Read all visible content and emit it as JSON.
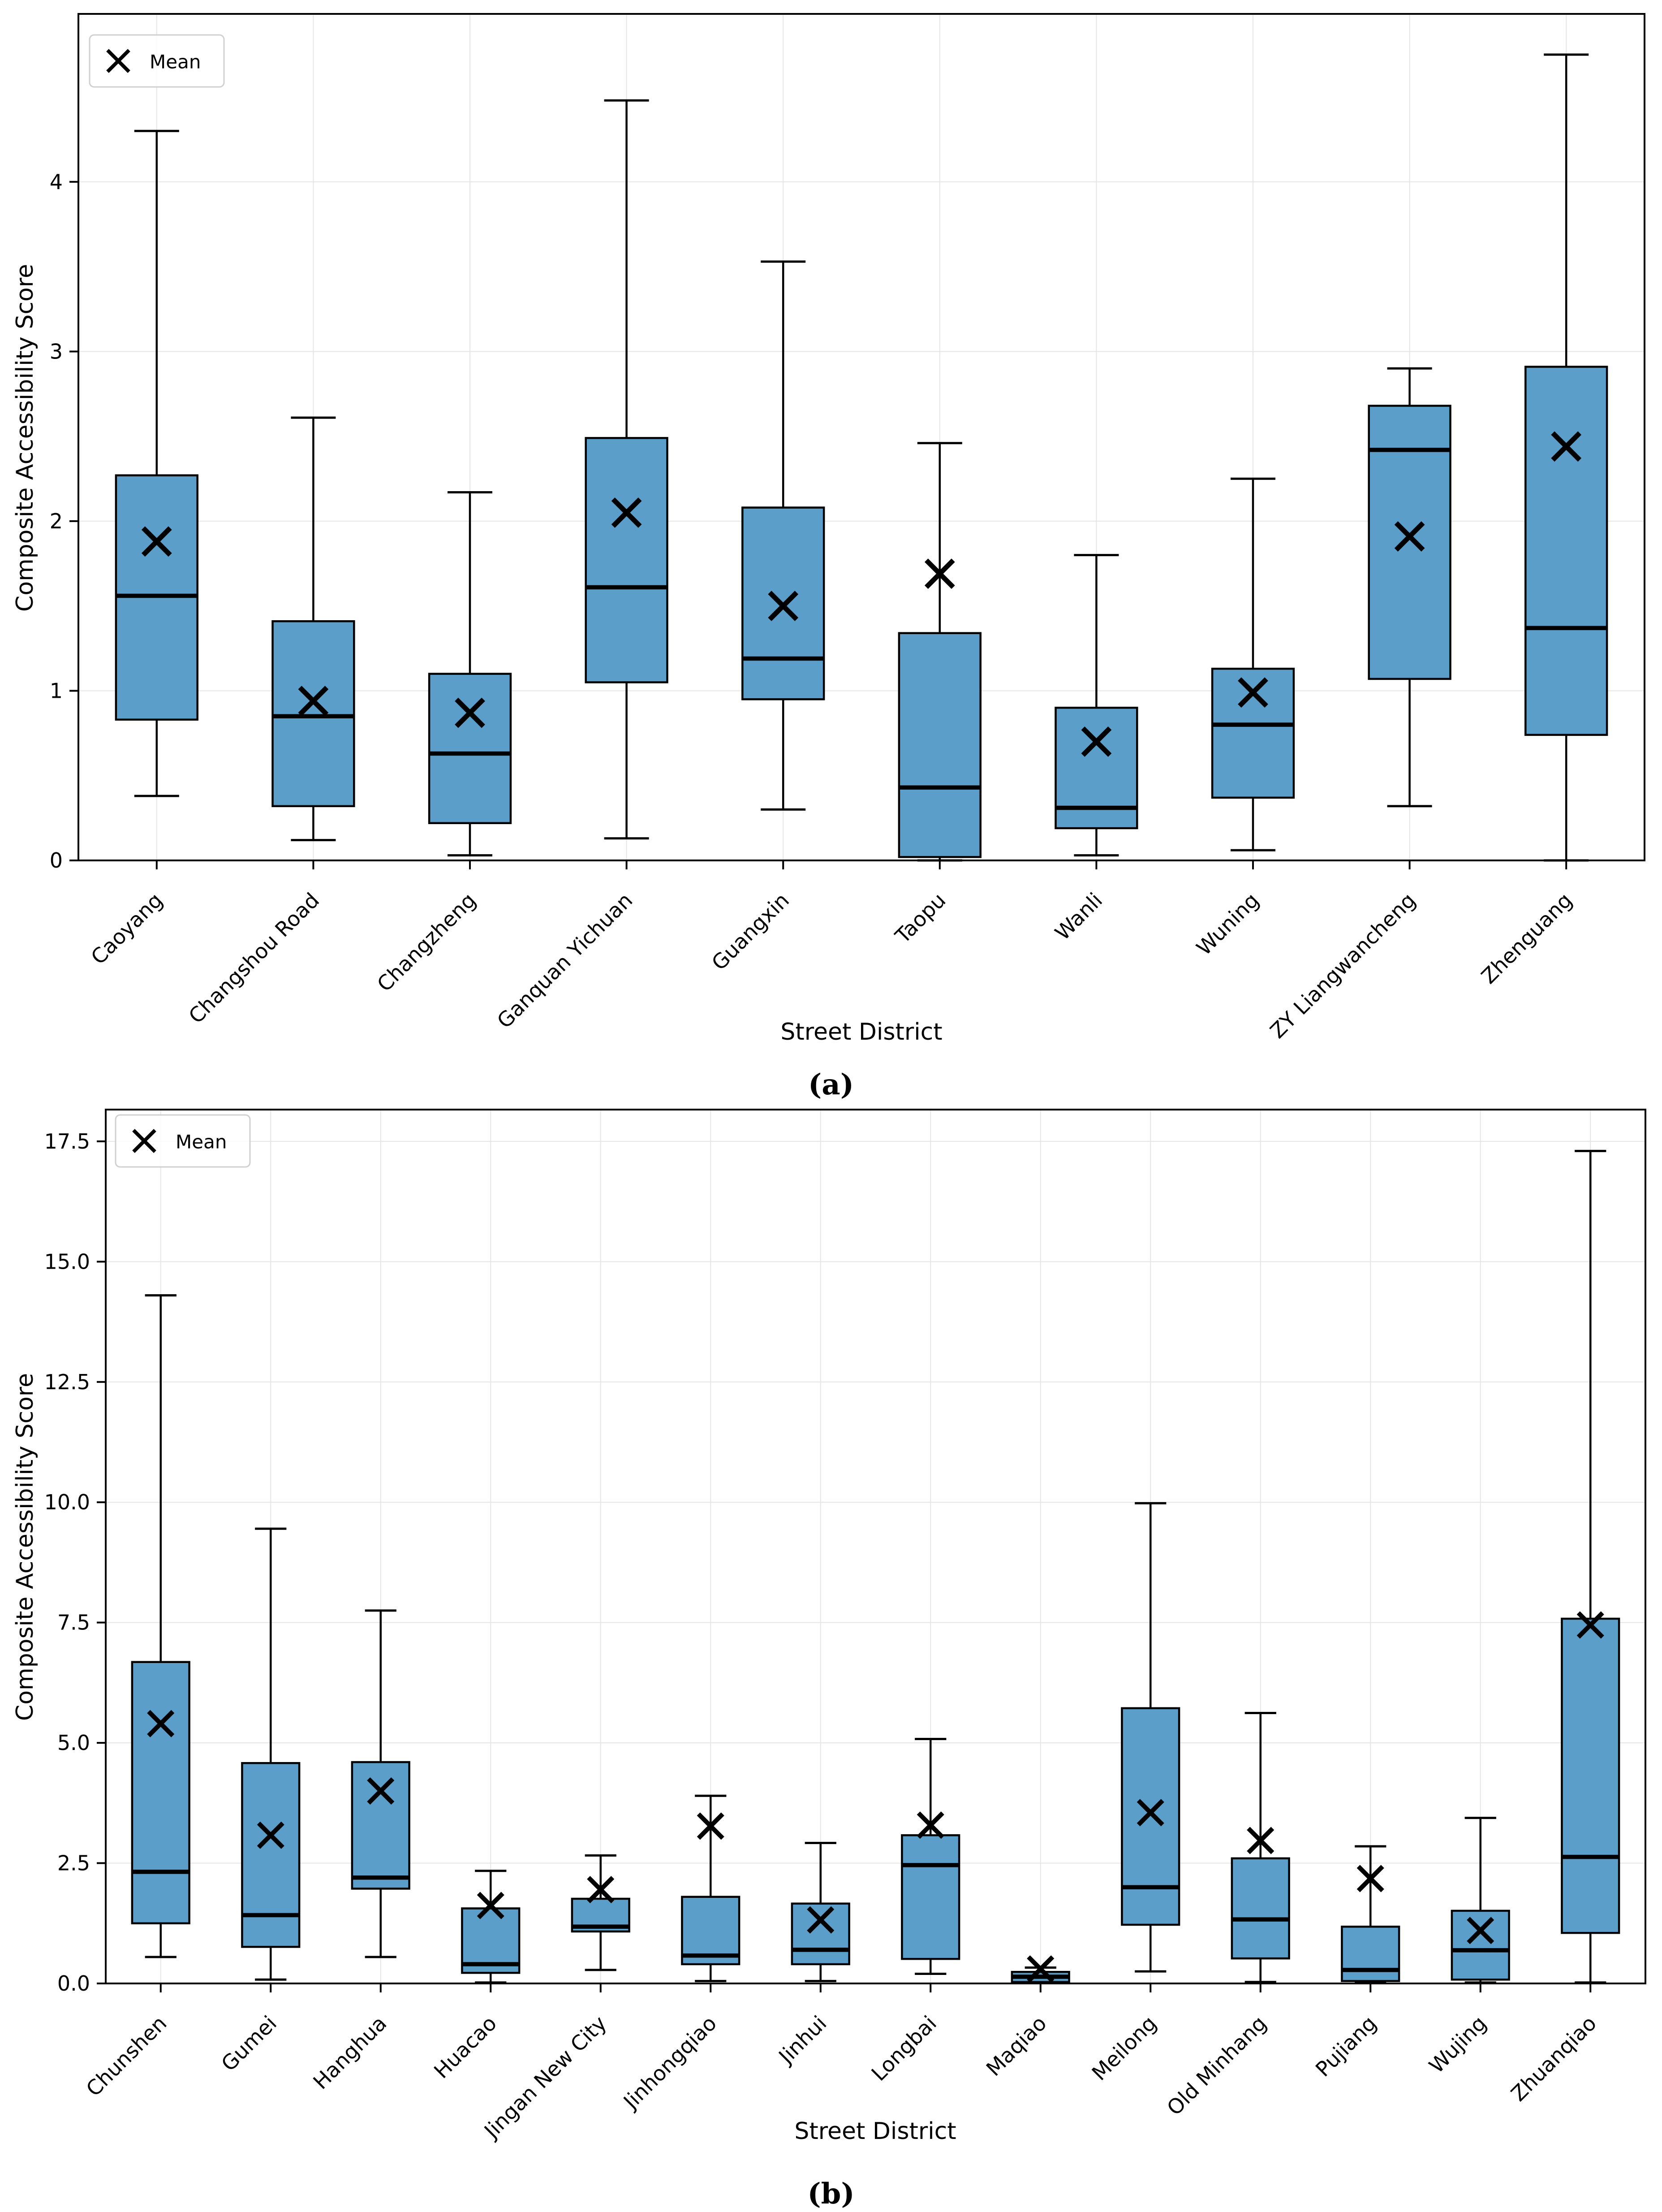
{
  "figure": {
    "legend_label": "Mean",
    "xlabel": "Street District",
    "ylabel": "Composite Accessibility Score",
    "caption_a": "(a)",
    "caption_b": "(b)",
    "colors": {
      "box_fill": "#5b9ec9",
      "box_edge": "#000000",
      "median": "#000000",
      "mean_marker": "#000000",
      "grid": "#e5e5e5",
      "legend_border": "#cccccc",
      "background": "#ffffff"
    }
  },
  "chart_data": [
    {
      "type": "box",
      "panel": "a",
      "xlabel": "Street District",
      "ylabel": "Composite Accessibility Score",
      "legend": "Mean",
      "grid": true,
      "legend_position": "upper-left",
      "ylim": [
        0,
        4.99
      ],
      "yticks": [
        {
          "v": 0,
          "label": "0"
        },
        {
          "v": 1,
          "label": "1"
        },
        {
          "v": 2,
          "label": "2"
        },
        {
          "v": 3,
          "label": "3"
        },
        {
          "v": 4,
          "label": "4"
        }
      ],
      "categories": [
        "Caoyang",
        "Changshou Road",
        "Changzheng",
        "Ganquan Yichuan",
        "Guangxin",
        "Taopu",
        "Wanli",
        "Wuning",
        "ZY Liangwancheng",
        "Zhenguang"
      ],
      "boxes": [
        {
          "whislo": 0.38,
          "q1": 0.83,
          "med": 1.56,
          "q3": 2.27,
          "whishi": 4.3,
          "mean": 1.88
        },
        {
          "whislo": 0.12,
          "q1": 0.32,
          "med": 0.85,
          "q3": 1.41,
          "whishi": 2.61,
          "mean": 0.94
        },
        {
          "whislo": 0.03,
          "q1": 0.22,
          "med": 0.63,
          "q3": 1.1,
          "whishi": 2.17,
          "mean": 0.87
        },
        {
          "whislo": 0.13,
          "q1": 1.05,
          "med": 1.61,
          "q3": 2.49,
          "whishi": 4.48,
          "mean": 2.05
        },
        {
          "whislo": 0.3,
          "q1": 0.95,
          "med": 1.19,
          "q3": 2.08,
          "whishi": 3.53,
          "mean": 1.5
        },
        {
          "whislo": 0.0,
          "q1": 0.02,
          "med": 0.43,
          "q3": 1.34,
          "whishi": 2.46,
          "mean": 1.69
        },
        {
          "whislo": 0.03,
          "q1": 0.19,
          "med": 0.31,
          "q3": 0.9,
          "whishi": 1.8,
          "mean": 0.7
        },
        {
          "whislo": 0.06,
          "q1": 0.37,
          "med": 0.8,
          "q3": 1.13,
          "whishi": 2.25,
          "mean": 0.99
        },
        {
          "whislo": 0.32,
          "q1": 1.07,
          "med": 2.42,
          "q3": 2.68,
          "whishi": 2.9,
          "mean": 1.91
        },
        {
          "whislo": 0.0,
          "q1": 0.74,
          "med": 1.37,
          "q3": 2.91,
          "whishi": 4.75,
          "mean": 2.44
        }
      ]
    },
    {
      "type": "box",
      "panel": "b",
      "xlabel": "Street District",
      "ylabel": "Composite Accessibility Score",
      "legend": "Mean",
      "grid": true,
      "legend_position": "upper-left",
      "ylim": [
        0,
        18.16
      ],
      "yticks": [
        {
          "v": 0,
          "label": "0.0"
        },
        {
          "v": 2.5,
          "label": "2.5"
        },
        {
          "v": 5,
          "label": "5.0"
        },
        {
          "v": 7.5,
          "label": "7.5"
        },
        {
          "v": 10,
          "label": "10.0"
        },
        {
          "v": 12.5,
          "label": "12.5"
        },
        {
          "v": 15,
          "label": "15.0"
        },
        {
          "v": 17.5,
          "label": "17.5"
        }
      ],
      "categories": [
        "Chunshen",
        "Gumei",
        "Hanghua",
        "Huacao",
        "Jingan New City",
        "Jinhongqiao",
        "Jinhui",
        "Longbai",
        "Maqiao",
        "Meilong",
        "Old Minhang",
        "Pujiang",
        "Wujing",
        "Zhuanqiao"
      ],
      "boxes": [
        {
          "whislo": 0.55,
          "q1": 1.25,
          "med": 2.32,
          "q3": 6.68,
          "whishi": 14.3,
          "mean": 5.4
        },
        {
          "whislo": 0.08,
          "q1": 0.76,
          "med": 1.42,
          "q3": 4.58,
          "whishi": 9.45,
          "mean": 3.08
        },
        {
          "whislo": 0.55,
          "q1": 1.97,
          "med": 2.2,
          "q3": 4.6,
          "whishi": 7.75,
          "mean": 4.0
        },
        {
          "whislo": 0.02,
          "q1": 0.22,
          "med": 0.4,
          "q3": 1.56,
          "whishi": 2.34,
          "mean": 1.62
        },
        {
          "whislo": 0.28,
          "q1": 1.08,
          "med": 1.18,
          "q3": 1.76,
          "whishi": 2.66,
          "mean": 1.95
        },
        {
          "whislo": 0.05,
          "q1": 0.4,
          "med": 0.58,
          "q3": 1.8,
          "whishi": 3.9,
          "mean": 3.27
        },
        {
          "whislo": 0.05,
          "q1": 0.4,
          "med": 0.7,
          "q3": 1.66,
          "whishi": 2.92,
          "mean": 1.32
        },
        {
          "whislo": 0.2,
          "q1": 0.51,
          "med": 2.46,
          "q3": 3.08,
          "whishi": 5.08,
          "mean": 3.29
        },
        {
          "whislo": 0.01,
          "q1": 0.03,
          "med": 0.14,
          "q3": 0.24,
          "whishi": 0.33,
          "mean": 0.3
        },
        {
          "whislo": 0.25,
          "q1": 1.22,
          "med": 2.0,
          "q3": 5.72,
          "whishi": 9.98,
          "mean": 3.55
        },
        {
          "whislo": 0.03,
          "q1": 0.52,
          "med": 1.33,
          "q3": 2.6,
          "whishi": 5.62,
          "mean": 2.97
        },
        {
          "whislo": 0.02,
          "q1": 0.05,
          "med": 0.28,
          "q3": 1.18,
          "whishi": 2.85,
          "mean": 2.18
        },
        {
          "whislo": 0.02,
          "q1": 0.08,
          "med": 0.69,
          "q3": 1.51,
          "whishi": 3.44,
          "mean": 1.1
        },
        {
          "whislo": 0.02,
          "q1": 1.05,
          "med": 2.63,
          "q3": 7.58,
          "whishi": 17.3,
          "mean": 7.45
        }
      ]
    }
  ]
}
